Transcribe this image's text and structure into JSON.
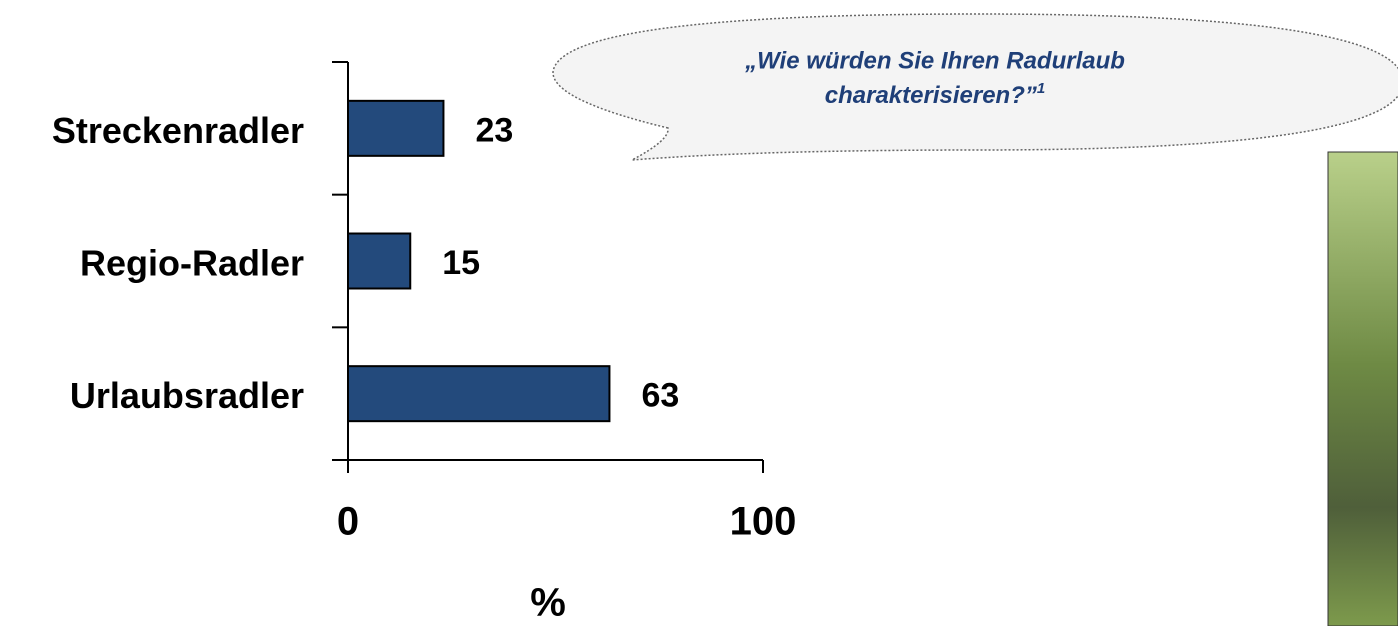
{
  "chart_data": {
    "type": "hbar",
    "annotation": [
      "„Wie würden Sie Ihren Radurlaub",
      "charakterisieren?”"
    ],
    "annotation_footnote": "1",
    "categories": [
      "Streckenradler",
      "Regio-Radler",
      "Urlaubsradler"
    ],
    "values": [
      23,
      15,
      63
    ],
    "color": "#234a7c",
    "xlim": [
      0,
      100
    ],
    "xticks": [
      0,
      100
    ],
    "xlabel": "%"
  }
}
